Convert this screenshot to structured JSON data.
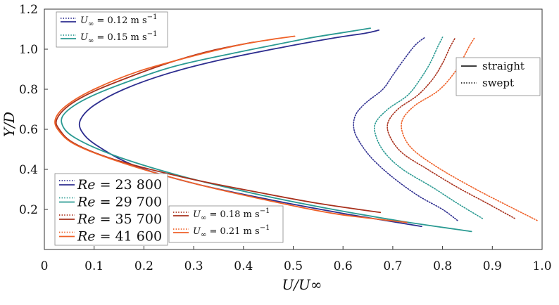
{
  "chart_data": {
    "type": "line",
    "title": "",
    "xlabel": "U/U∞",
    "ylabel": "Y/D",
    "xlim": [
      0,
      1.0
    ],
    "ylim": [
      0,
      1.2
    ],
    "xticks": [
      "0",
      "0.1",
      "0.2",
      "0.3",
      "0.4",
      "0.5",
      "0.6",
      "0.7",
      "0.8",
      "0.9",
      "1.0"
    ],
    "yticks": [
      "0",
      "0.2",
      "0.4",
      "0.6",
      "0.8",
      "1.0",
      "1.2"
    ],
    "grid": false,
    "colors": {
      "u012": "#2d2d8f",
      "u015": "#2a9a92",
      "u018": "#a8301c",
      "u021": "#ef6128",
      "axis": "#333333"
    },
    "legends": {
      "velocity_top": [
        {
          "sym": "U",
          "sub": "∞",
          "rest": " = 0.12 m s",
          "sup": "−1",
          "color_key": "u012"
        },
        {
          "sym": "U",
          "sub": "∞",
          "rest": " = 0.15 m s",
          "sup": "−1",
          "color_key": "u015"
        }
      ],
      "velocity_bottom": [
        {
          "sym": "U",
          "sub": "∞",
          "rest": " = 0.18 m s",
          "sup": "−1",
          "color_key": "u018"
        },
        {
          "sym": "U",
          "sub": "∞",
          "rest": " = 0.21 m s",
          "sup": "−1",
          "color_key": "u021"
        }
      ],
      "style": [
        {
          "label": "straight",
          "style": "solid"
        },
        {
          "label": "swept",
          "style": "dotted"
        }
      ],
      "reynolds": [
        {
          "sym": "Re",
          "rest": " = 23 800",
          "color_key": "u012"
        },
        {
          "sym": "Re",
          "rest": " = 29 700",
          "color_key": "u015"
        },
        {
          "sym": "Re",
          "rest": " = 35 700",
          "color_key": "u018"
        },
        {
          "sym": "Re",
          "rest": " = 41 600",
          "color_key": "u021"
        }
      ]
    },
    "series": [
      {
        "name": "U∞ = 0.12 m s−1 (straight)",
        "color_key": "u012",
        "style": "solid",
        "x": [
          0.758,
          0.6,
          0.45,
          0.3,
          0.18,
          0.105,
          0.075,
          0.073,
          0.1,
          0.16,
          0.25,
          0.36,
          0.48,
          0.58,
          0.645,
          0.672
        ],
        "y": [
          0.115,
          0.18,
          0.25,
          0.33,
          0.42,
          0.52,
          0.59,
          0.65,
          0.72,
          0.8,
          0.88,
          0.95,
          1.01,
          1.055,
          1.08,
          1.095
        ]
      },
      {
        "name": "U∞ = 0.15 m s−1 (straight)",
        "color_key": "u015",
        "style": "solid",
        "x": [
          0.858,
          0.72,
          0.58,
          0.42,
          0.27,
          0.14,
          0.06,
          0.035,
          0.045,
          0.09,
          0.17,
          0.27,
          0.4,
          0.52,
          0.605,
          0.655
        ],
        "y": [
          0.09,
          0.14,
          0.2,
          0.28,
          0.37,
          0.47,
          0.56,
          0.63,
          0.69,
          0.76,
          0.84,
          0.92,
          0.99,
          1.05,
          1.085,
          1.105
        ]
      },
      {
        "name": "U∞ = 0.18 m s−1 (straight)",
        "color_key": "u018",
        "style": "solid",
        "x": [
          0.675,
          0.55,
          0.42,
          0.28,
          0.14,
          0.06,
          0.03,
          0.025,
          0.05,
          0.1,
          0.18,
          0.26,
          0.34,
          0.42
        ],
        "y": [
          0.185,
          0.23,
          0.29,
          0.36,
          0.45,
          0.53,
          0.6,
          0.65,
          0.72,
          0.79,
          0.87,
          0.94,
          0.995,
          1.035
        ]
      },
      {
        "name": "U∞ = 0.21 m s−1 (straight)",
        "color_key": "u021",
        "style": "solid",
        "x": [
          0.728,
          0.58,
          0.44,
          0.3,
          0.16,
          0.065,
          0.03,
          0.022,
          0.045,
          0.1,
          0.19,
          0.29,
          0.39,
          0.46,
          0.503
        ],
        "y": [
          0.135,
          0.18,
          0.25,
          0.33,
          0.43,
          0.52,
          0.59,
          0.65,
          0.72,
          0.8,
          0.89,
          0.96,
          1.02,
          1.05,
          1.065
        ]
      },
      {
        "name": "U∞ = 0.12 m s−1 (swept)",
        "color_key": "u012",
        "style": "dotted",
        "x": [
          0.83,
          0.8,
          0.75,
          0.7,
          0.66,
          0.635,
          0.622,
          0.625,
          0.645,
          0.68,
          0.7,
          0.72,
          0.745,
          0.765
        ],
        "y": [
          0.145,
          0.2,
          0.27,
          0.36,
          0.45,
          0.53,
          0.6,
          0.67,
          0.73,
          0.8,
          0.87,
          0.94,
          1.02,
          1.06
        ]
      },
      {
        "name": "U∞ = 0.15 m s−1 (swept)",
        "color_key": "u015",
        "style": "dotted",
        "x": [
          0.88,
          0.83,
          0.78,
          0.72,
          0.685,
          0.667,
          0.665,
          0.69,
          0.73,
          0.755,
          0.775,
          0.79,
          0.8
        ],
        "y": [
          0.155,
          0.23,
          0.31,
          0.4,
          0.48,
          0.56,
          0.63,
          0.7,
          0.77,
          0.85,
          0.93,
          1.01,
          1.06
        ]
      },
      {
        "name": "U∞ = 0.18 m s−1 (swept)",
        "color_key": "u018",
        "style": "dotted",
        "x": [
          0.945,
          0.89,
          0.83,
          0.77,
          0.72,
          0.695,
          0.69,
          0.71,
          0.75,
          0.78,
          0.8,
          0.815,
          0.825
        ],
        "y": [
          0.155,
          0.23,
          0.31,
          0.4,
          0.48,
          0.56,
          0.63,
          0.7,
          0.77,
          0.85,
          0.93,
          1.01,
          1.055
        ]
      },
      {
        "name": "U∞ = 0.21 m s−1 (swept)",
        "color_key": "u021",
        "style": "dotted",
        "x": [
          0.99,
          0.93,
          0.86,
          0.79,
          0.74,
          0.72,
          0.72,
          0.745,
          0.79,
          0.82,
          0.84,
          0.855,
          0.865
        ],
        "y": [
          0.145,
          0.22,
          0.31,
          0.41,
          0.5,
          0.58,
          0.65,
          0.72,
          0.79,
          0.87,
          0.95,
          1.02,
          1.06
        ]
      }
    ]
  }
}
